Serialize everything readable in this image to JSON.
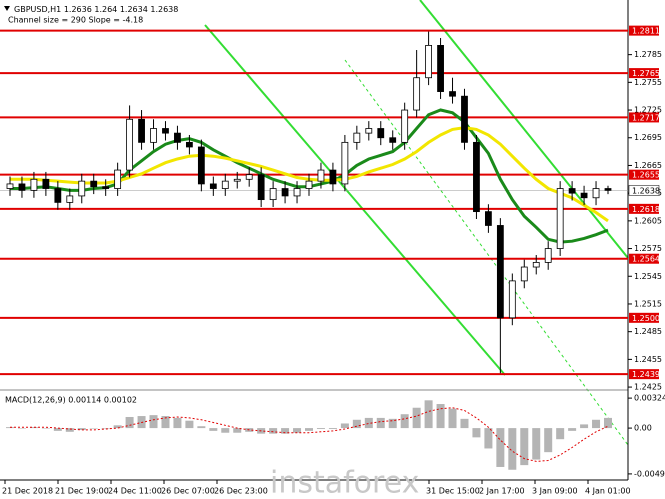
{
  "chart_data": {
    "type": "candlestick",
    "symbol": "GBPUSD,H1",
    "quote": [
      1.2636,
      1.264,
      1.2634,
      1.2638
    ],
    "subtitle": "Channel size = 290 Slope = -4.18",
    "ylim": [
      1.2424,
      1.2842
    ],
    "yticks": [
      1.2785,
      1.2755,
      1.2725,
      1.2695,
      1.2665,
      1.2635,
      1.2605,
      1.2575,
      1.2545,
      1.2515,
      1.2485,
      1.2455,
      1.2425
    ],
    "levels": [
      1.2811,
      1.2765,
      1.2717,
      1.2655,
      1.2618,
      1.2564,
      1.25,
      1.2439
    ],
    "level_labels": [
      "1.2811",
      "1.2765",
      "1.2717",
      "1.2655",
      "1.2618",
      "1.2564",
      "1.2500",
      "1.2439"
    ],
    "level_color": "#e00000",
    "current_price": 1.2638,
    "xlabels": [
      "21 Dec 2018",
      "21 Dec 19:00",
      "24 Dec 11:00",
      "26 Dec 07:00",
      "26 Dec 23:00",
      null,
      null,
      null,
      "31 Dec 15:00",
      "2 Jan 17:00",
      "3 Jan 09:00",
      "4 Jan 01:00"
    ],
    "watermark": "instaforex",
    "candles": {
      "open": [
        1.264,
        1.2645,
        1.2638,
        1.265,
        1.264,
        1.2625,
        1.2632,
        1.2648,
        1.2642,
        1.264,
        1.266,
        1.2715,
        1.269,
        1.2705,
        1.27,
        1.269,
        1.2685,
        1.2645,
        1.264,
        1.2648,
        1.265,
        1.2655,
        1.2628,
        1.264,
        1.2632,
        1.264,
        1.2648,
        1.266,
        1.2645,
        1.269,
        1.27,
        1.2705,
        1.2695,
        1.269,
        1.2725,
        1.276,
        1.2795,
        1.2745,
        1.274,
        1.269,
        1.2615,
        1.26,
        1.25,
        1.254,
        1.2555,
        1.256,
        1.2575,
        1.264,
        1.2635,
        1.263,
        1.264
      ],
      "high": [
        1.2653,
        1.2653,
        1.2658,
        1.2658,
        1.2648,
        1.264,
        1.2656,
        1.2656,
        1.265,
        1.2668,
        1.273,
        1.2725,
        1.2715,
        1.2713,
        1.2708,
        1.2698,
        1.2693,
        1.2653,
        1.2656,
        1.2658,
        1.2663,
        1.2663,
        1.2648,
        1.2648,
        1.2648,
        1.2656,
        1.2668,
        1.2668,
        1.2698,
        1.2708,
        1.2713,
        1.2713,
        1.2703,
        1.2733,
        1.279,
        1.281,
        1.2803,
        1.276,
        1.2748,
        1.2698,
        1.2623,
        1.2608,
        1.2548,
        1.2563,
        1.2568,
        1.2583,
        1.2648,
        1.2648,
        1.2643,
        1.2648,
        1.2643
      ],
      "low": [
        1.2632,
        1.263,
        1.263,
        1.2632,
        1.2617,
        1.2617,
        1.2624,
        1.2634,
        1.2632,
        1.2632,
        1.2652,
        1.2682,
        1.2682,
        1.2692,
        1.2682,
        1.2677,
        1.2637,
        1.2632,
        1.2632,
        1.264,
        1.2642,
        1.262,
        1.262,
        1.2624,
        1.2624,
        1.2632,
        1.264,
        1.2637,
        1.2637,
        1.2682,
        1.2692,
        1.2687,
        1.2682,
        1.2682,
        1.2717,
        1.2752,
        1.2737,
        1.2732,
        1.2682,
        1.2607,
        1.2592,
        1.244,
        1.2492,
        1.2532,
        1.2547,
        1.2552,
        1.2567,
        1.2627,
        1.2622,
        1.2622,
        1.2634
      ],
      "close": [
        1.2645,
        1.2638,
        1.265,
        1.264,
        1.2625,
        1.2632,
        1.2648,
        1.2642,
        1.264,
        1.266,
        1.2715,
        1.269,
        1.2705,
        1.27,
        1.269,
        1.2685,
        1.2645,
        1.264,
        1.2648,
        1.265,
        1.2655,
        1.2628,
        1.264,
        1.2632,
        1.264,
        1.2648,
        1.266,
        1.2645,
        1.269,
        1.27,
        1.2705,
        1.2695,
        1.269,
        1.2725,
        1.276,
        1.2795,
        1.2745,
        1.274,
        1.269,
        1.2615,
        1.26,
        1.25,
        1.254,
        1.2555,
        1.256,
        1.2575,
        1.264,
        1.2635,
        1.263,
        1.264,
        1.2638
      ]
    },
    "series": [
      {
        "color": "#1a8a1a",
        "values": [
          1.264,
          1.264,
          1.2641,
          1.2642,
          1.264,
          1.2638,
          1.2638,
          1.264,
          1.2641,
          1.2645,
          1.266,
          1.267,
          1.268,
          1.2688,
          1.2692,
          1.2694,
          1.269,
          1.2682,
          1.2675,
          1.2668,
          1.2662,
          1.2656,
          1.265,
          1.2646,
          1.2642,
          1.2642,
          1.2645,
          1.2648,
          1.2655,
          1.2665,
          1.2672,
          1.2676,
          1.268,
          1.269,
          1.2705,
          1.272,
          1.2725,
          1.2722,
          1.2712,
          1.2695,
          1.2678,
          1.265,
          1.2628,
          1.261,
          1.2598,
          1.2585,
          1.2582,
          1.2583,
          1.2586,
          1.259,
          1.2595
        ]
      },
      {
        "color": "#f2e600",
        "values": [
          1.265,
          1.265,
          1.265,
          1.2649,
          1.2648,
          1.2647,
          1.2646,
          1.2646,
          1.2646,
          1.2648,
          1.2652,
          1.2656,
          1.2662,
          1.2668,
          1.2672,
          1.2675,
          1.2676,
          1.2675,
          1.2673,
          1.267,
          1.2667,
          1.2664,
          1.266,
          1.2656,
          1.2652,
          1.265,
          1.2649,
          1.2649,
          1.265,
          1.2653,
          1.2658,
          1.2662,
          1.2666,
          1.2672,
          1.268,
          1.269,
          1.2698,
          1.2704,
          1.2706,
          1.2704,
          1.2698,
          1.2688,
          1.2675,
          1.2662,
          1.265,
          1.264,
          1.2635,
          1.263,
          1.2622,
          1.2614,
          1.2605
        ]
      }
    ],
    "macd": {
      "title": "MACD(12,26,9) 0.00114 0.00102",
      "ylim": [
        -0.0055,
        0.0039
      ],
      "yticks": [
        0.00324,
        {
          "value": 0,
          "label": "0.00"
        },
        -0.00495
      ],
      "histogram": [
        0.0001,
        0.0,
        0.0001,
        0.0,
        -0.0003,
        -0.0004,
        -0.0002,
        0.0,
        0.0,
        0.0003,
        0.0012,
        0.0013,
        0.0014,
        0.0013,
        0.0011,
        0.0008,
        0.0002,
        -0.0003,
        -0.0005,
        -0.0005,
        -0.0004,
        -0.0006,
        -0.0006,
        -0.0006,
        -0.0005,
        -0.0003,
        -0.0001,
        -0.0001,
        0.0005,
        0.0009,
        0.0011,
        0.0011,
        0.001,
        0.0015,
        0.0022,
        0.003,
        0.0026,
        0.0021,
        0.001,
        -0.001,
        -0.0022,
        -0.0042,
        -0.0045,
        -0.004,
        -0.0034,
        -0.0026,
        -0.0012,
        -0.0003,
        0.0004,
        0.0009,
        0.0011
      ],
      "signal": [
        0.0001,
        0.0001,
        0.0001,
        0.0001,
        0.0,
        -0.0001,
        -0.0002,
        -0.0002,
        -0.0001,
        0.0,
        0.0003,
        0.0006,
        0.0009,
        0.0011,
        0.0012,
        0.0011,
        0.0009,
        0.0006,
        0.0003,
        0.0,
        -0.0002,
        -0.0003,
        -0.0004,
        -0.0005,
        -0.0005,
        -0.0005,
        -0.0004,
        -0.0003,
        -0.0001,
        0.0002,
        0.0005,
        0.0007,
        0.0008,
        0.001,
        0.0013,
        0.0018,
        0.0021,
        0.0022,
        0.0019,
        0.0011,
        0.0001,
        -0.0013,
        -0.0025,
        -0.0033,
        -0.0036,
        -0.0035,
        -0.0029,
        -0.0021,
        -0.0012,
        -0.0004,
        0.0002
      ],
      "hist_color": "#b4b4b4",
      "signal_color": "#e00000"
    }
  }
}
